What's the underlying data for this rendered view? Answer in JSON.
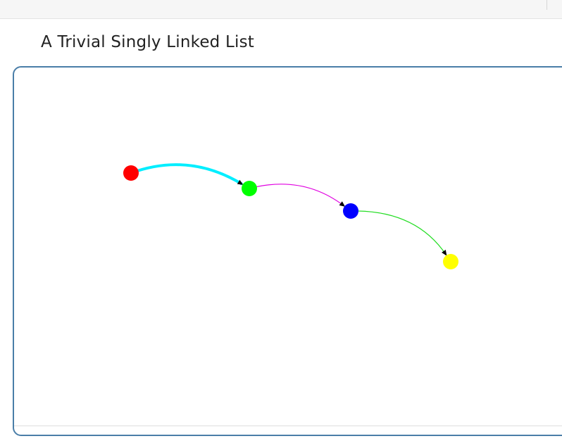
{
  "page": {
    "title": "A Trivial Singly Linked List"
  },
  "graph": {
    "nodes": [
      {
        "id": "n1",
        "color": "#ff0000"
      },
      {
        "id": "n2",
        "color": "#00ff00"
      },
      {
        "id": "n3",
        "color": "#0000ff"
      },
      {
        "id": "n4",
        "color": "#ffff00"
      }
    ],
    "edges": [
      {
        "from": "n1",
        "to": "n2",
        "color": "#00eeff"
      },
      {
        "from": "n2",
        "to": "n3",
        "color": "#e000e0"
      },
      {
        "from": "n3",
        "to": "n4",
        "color": "#22dd22"
      }
    ]
  }
}
